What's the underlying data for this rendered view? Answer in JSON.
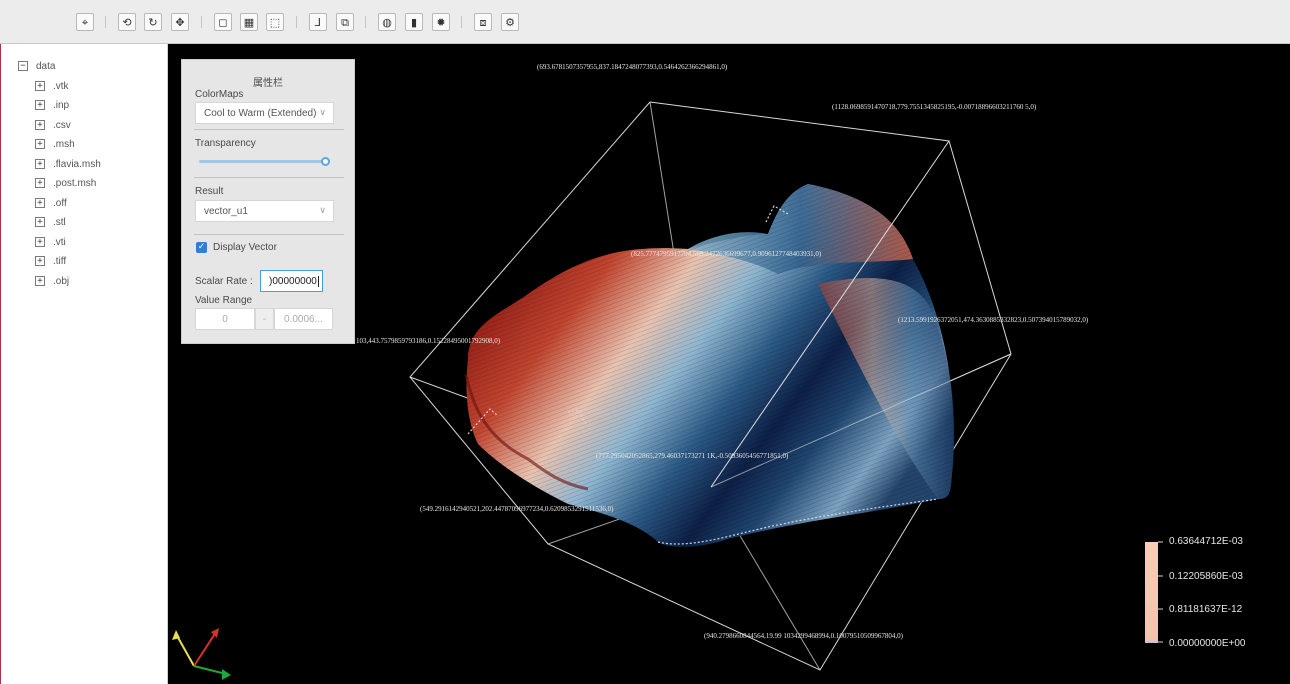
{
  "toolbar": {
    "buttons": [
      {
        "name": "target-icon",
        "glyph": "⌖"
      },
      {
        "name": "cube-rotate-icon",
        "glyph": "⟲"
      },
      {
        "name": "rotate-icon",
        "glyph": "↻"
      },
      {
        "name": "pan-icon",
        "glyph": "✥"
      },
      {
        "name": "box-icon",
        "glyph": "◻"
      },
      {
        "name": "grid-icon",
        "glyph": "▦"
      },
      {
        "name": "select-region-icon",
        "glyph": "⬚"
      },
      {
        "name": "axes-icon",
        "glyph": "⅃"
      },
      {
        "name": "layers-icon",
        "glyph": "⧉"
      },
      {
        "name": "palette-icon",
        "glyph": "◍"
      },
      {
        "name": "bar-chart-icon",
        "glyph": "▮"
      },
      {
        "name": "light-icon",
        "glyph": "✹"
      },
      {
        "name": "screenshot-icon",
        "glyph": "⧈"
      },
      {
        "name": "settings-icon",
        "glyph": "⚙"
      }
    ]
  },
  "tree": {
    "root": "data",
    "root_toggle": "−",
    "item_toggle": "+",
    "items": [
      ".vtk",
      ".inp",
      ".csv",
      ".msh",
      ".flavia.msh",
      ".post.msh",
      ".off",
      ".stl",
      ".vti",
      ".tiff",
      ".obj"
    ]
  },
  "panel": {
    "title": "属性栏",
    "colormaps_label": "ColorMaps",
    "colormap_value": "Cool to Warm (Extended)",
    "transparency_label": "Transparency",
    "transparency_value": 1.0,
    "result_label": "Result",
    "result_value": "vector_u1",
    "display_vector_label": "Display Vector",
    "display_vector_checked": true,
    "scalar_rate_label": "Scalar Rate :",
    "scalar_rate_value": ")00000000",
    "value_range_label": "Value Range",
    "range_min": "0",
    "range_sep": "-",
    "range_max": "0.0006..."
  },
  "viewport": {
    "coords": [
      "(693.6781507357955,837.1847248077393,0.5464262366294861,0)",
      "(1128.0698591470718,779.7551345825195,-0.00718896603211760 5,0)",
      "(825.7774795917794,569.2472636699677,0.9096127748403931,0)",
      "(1213.5991926372051,474.3630885332823,0.507394015789032,0)",
      "103,443.7579859793186,0.15228495001792908,0)",
      "(777.295042052865,279.46037173271 1K,-0.5093605456771851,0)",
      "(549.2916142940521,202.44787096977234,0.6209853291511536,0)",
      "(940.2798660844564,19.99 1034299468994,0.10079510509967804,0)"
    ],
    "colors": {
      "background": "#000000",
      "cool": "#3b4cc0",
      "mid": "#f7f7f7",
      "warm": "#b40426",
      "legend_fill": "#f5c9b3"
    }
  },
  "legend": {
    "labels": [
      "0.63644712E-03",
      "0.12205860E-03",
      "0.81181637E-12",
      "0.00000000E+00"
    ]
  }
}
